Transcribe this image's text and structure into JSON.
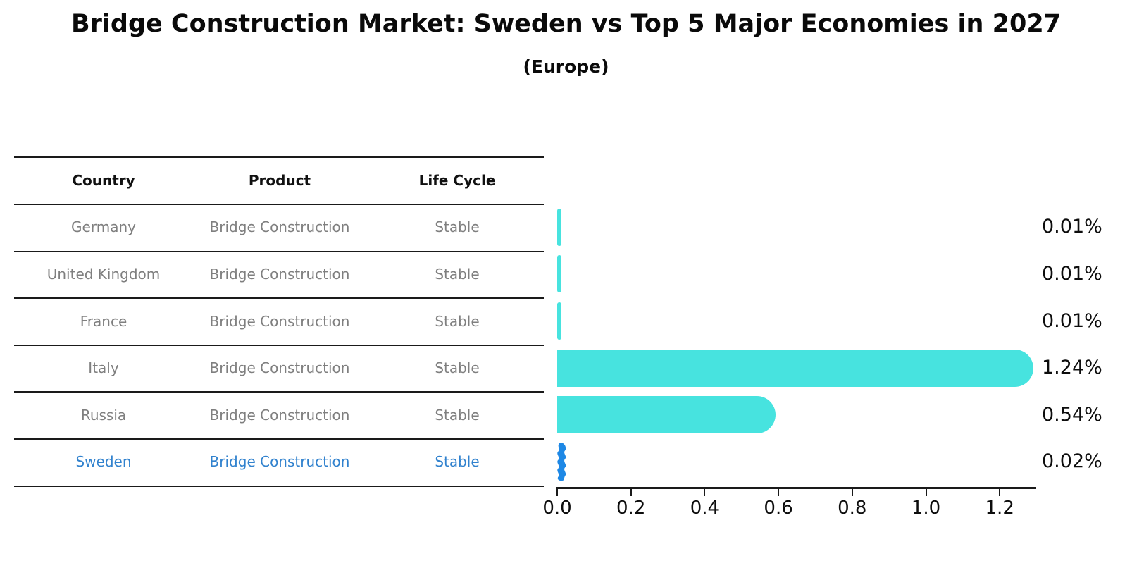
{
  "title": "Bridge Construction Market: Sweden vs Top 5 Major Economies in 2027",
  "subtitle": "(Europe)",
  "table": {
    "columns": [
      "Country",
      "Product",
      "Life Cycle"
    ],
    "rows": [
      {
        "country": "Germany",
        "product": "Bridge Construction",
        "life_cycle": "Stable",
        "value_label": "0.01%",
        "highlight": false
      },
      {
        "country": "United Kingdom",
        "product": "Bridge Construction",
        "life_cycle": "Stable",
        "value_label": "0.01%",
        "highlight": false
      },
      {
        "country": "France",
        "product": "Bridge Construction",
        "life_cycle": "Stable",
        "value_label": "0.01%",
        "highlight": false
      },
      {
        "country": "Italy",
        "product": "Bridge Construction",
        "life_cycle": "Stable",
        "value_label": "1.24%",
        "highlight": false
      },
      {
        "country": "Russia",
        "product": "Bridge Construction",
        "life_cycle": "Stable",
        "value_label": "0.54%",
        "highlight": false
      },
      {
        "country": "Sweden",
        "product": "Bridge Construction",
        "life_cycle": "Stable",
        "value_label": "0.02%",
        "highlight": true
      }
    ]
  },
  "chart_data": {
    "type": "bar",
    "orientation": "horizontal",
    "title": "Bridge Construction Market: Sweden vs Top 5 Major Economies in 2027",
    "subtitle": "(Europe)",
    "categories": [
      "Germany",
      "United Kingdom",
      "France",
      "Italy",
      "Russia",
      "Sweden"
    ],
    "values": [
      0.01,
      0.01,
      0.01,
      1.24,
      0.54,
      0.02
    ],
    "value_labels": [
      "0.01%",
      "0.01%",
      "0.01%",
      "1.24%",
      "0.54%",
      "0.02%"
    ],
    "xlabel": "",
    "ylabel": "",
    "xlim": [
      0,
      1.3
    ],
    "xticks": [
      "0.0",
      "0.2",
      "0.4",
      "0.6",
      "0.8",
      "1.0",
      "1.2"
    ],
    "grid": false,
    "legend": false,
    "bar_color": "#47E3DF",
    "highlight_color": "#1E88E5",
    "highlight_index": 5,
    "highlight_text_color": "#3182CE",
    "row_text_color": "#7f7f7f"
  }
}
